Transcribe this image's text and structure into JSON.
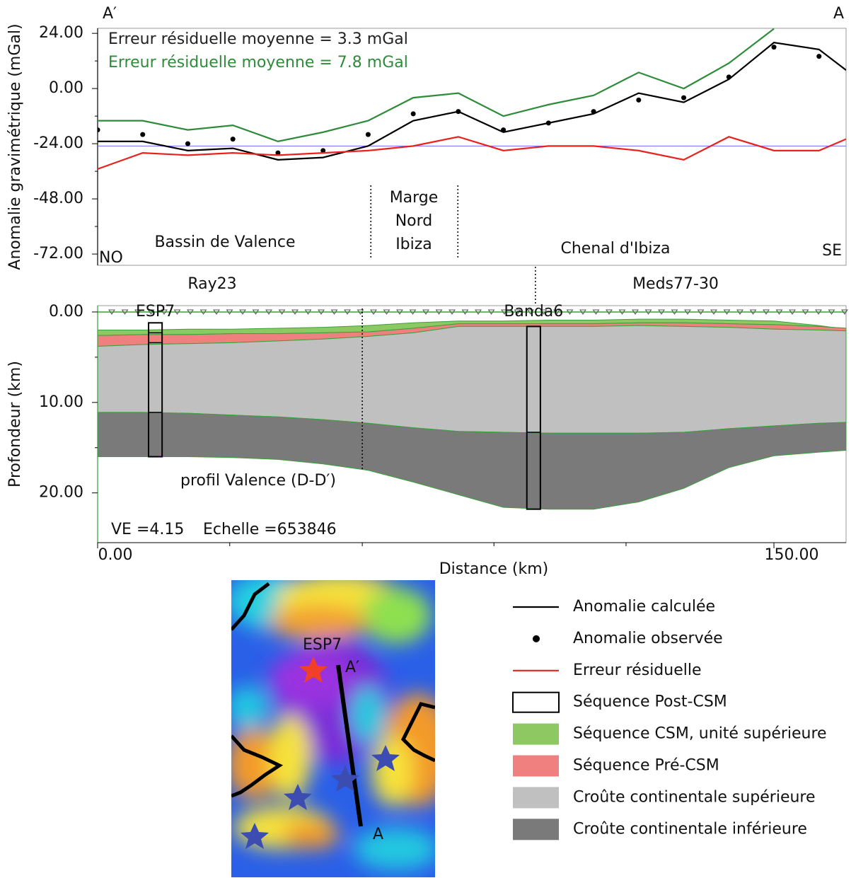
{
  "chart_data": [
    {
      "type": "line",
      "corner_left": "A′",
      "corner_right": "A",
      "error_labels": [
        {
          "text": "Erreur résiduelle moyenne = 3.3 mGal",
          "color": "#222222"
        },
        {
          "text": "Erreur résiduelle moyenne = 7.8 mGal",
          "color": "#2e8b3a"
        }
      ],
      "ylabel": "Anomalie gravimétrique (mGal)",
      "x": [
        0,
        10,
        20,
        30,
        40,
        50,
        60,
        70,
        80,
        90,
        100,
        110,
        120,
        130,
        140,
        150,
        160,
        166
      ],
      "xlim": [
        0,
        166
      ],
      "ylim": [
        -76.9,
        26.2
      ],
      "yticks": [
        {
          "value": 24,
          "label": "24.00"
        },
        {
          "value": 0,
          "label": "0.00"
        },
        {
          "value": -24,
          "label": "-24.00"
        },
        {
          "value": -48,
          "label": "-48.00"
        },
        {
          "value": -72,
          "label": "-72.00"
        }
      ],
      "yminor": [
        12,
        -12,
        -36,
        -60
      ],
      "series": [
        {
          "name": "Anomalie calculée",
          "color": "#000000",
          "style": "line",
          "values": [
            -23,
            -23,
            -27,
            -26,
            -31,
            -30,
            -25,
            -14,
            -10,
            -19,
            -15,
            -11,
            -2,
            -6,
            4,
            20,
            17,
            8
          ]
        },
        {
          "name": "Anomalie observée",
          "color": "#000000",
          "style": "dots",
          "values": [
            -18,
            -20,
            -24,
            -22,
            -28,
            -27,
            -20,
            -11,
            -10,
            -18,
            -15,
            -10,
            -5,
            -4,
            5,
            18,
            14,
            null
          ]
        },
        {
          "name": "Erreur résiduelle",
          "color": "#e8221c",
          "style": "line",
          "values": [
            -35,
            -28,
            -29,
            -28,
            -29,
            -28,
            -27,
            -25,
            -21,
            -27,
            -25,
            -25,
            -27,
            -31,
            -21,
            -27,
            -27,
            -22
          ]
        },
        {
          "color": "#2e8b3a",
          "style": "line",
          "values": [
            -14,
            -14,
            -18,
            -16,
            -23,
            -19,
            -14,
            -4,
            -2,
            -12,
            -7,
            -3,
            7,
            0,
            11,
            26,
            null,
            null
          ]
        }
      ],
      "reference_line": {
        "value": -25,
        "color": "#6b6bff"
      },
      "boundaries": [
        60.6,
        79.9
      ],
      "regions": {
        "left": "Bassin de Valence",
        "middle": [
          "Marge",
          "Nord",
          "Ibiza"
        ],
        "right": "Chenal d'Ibiza"
      },
      "side_left": "NO",
      "side_right": "SE"
    },
    {
      "type": "section",
      "ylabel": "Profondeur (km)",
      "xlabel": "Distance (km)",
      "x": [
        0,
        10,
        20,
        30,
        40,
        50,
        60,
        70,
        80,
        90,
        100,
        110,
        120,
        130,
        140,
        150,
        160,
        166
      ],
      "xlim": [
        0,
        166
      ],
      "ylim": [
        -0.7,
        25.5
      ],
      "xticks": [
        {
          "value": 0,
          "label": "0.00"
        },
        {
          "value": 150,
          "label": "150.00"
        }
      ],
      "xminor": [
        29.3,
        58.7,
        87.9,
        117.2
      ],
      "yticks": [
        {
          "value": 0,
          "label": "0.00"
        },
        {
          "value": 10,
          "label": "10.00"
        },
        {
          "value": 20,
          "label": "20.00"
        }
      ],
      "yminor": [
        5,
        15
      ],
      "layers": [
        {
          "name": "Séquence CSM, unité supérieure",
          "color": "#8dc863",
          "top": [
            2.0,
            2.0,
            1.9,
            1.9,
            1.8,
            1.7,
            1.5,
            1.2,
            1.0,
            1.0,
            0.9,
            0.9,
            0.8,
            0.8,
            0.9,
            1.0,
            1.5,
            1.9
          ],
          "bottom": [
            2.6,
            2.5,
            2.5,
            2.4,
            2.4,
            2.3,
            2.2,
            1.8,
            1.3,
            1.3,
            1.3,
            1.3,
            1.2,
            1.2,
            1.3,
            1.4,
            1.6,
            1.8
          ]
        },
        {
          "name": "Séquence Pré-CSM",
          "color": "#f08080",
          "top": [
            2.6,
            2.5,
            2.5,
            2.4,
            2.4,
            2.3,
            2.2,
            1.8,
            1.3,
            1.3,
            1.3,
            1.3,
            1.2,
            1.2,
            1.3,
            1.4,
            1.6,
            1.8
          ],
          "bottom": [
            3.8,
            3.6,
            3.5,
            3.4,
            3.2,
            3.0,
            2.7,
            2.3,
            1.6,
            1.6,
            1.6,
            1.6,
            1.5,
            1.6,
            1.7,
            1.9,
            2.0,
            2.1
          ]
        },
        {
          "name": "Croûte continentale supérieure",
          "color": "#c0c0c0",
          "top": [
            3.8,
            3.6,
            3.5,
            3.4,
            3.2,
            3.0,
            2.7,
            2.3,
            1.6,
            1.6,
            1.6,
            1.6,
            1.5,
            1.6,
            1.7,
            1.9,
            2.0,
            2.1
          ],
          "bottom": [
            11.1,
            11.1,
            11.2,
            11.4,
            11.6,
            11.9,
            12.3,
            12.8,
            13.2,
            13.3,
            13.4,
            13.4,
            13.4,
            13.3,
            12.9,
            12.6,
            12.3,
            12.2
          ]
        },
        {
          "name": "Croûte continentale inférieure",
          "color": "#7a7a7a",
          "top": [
            11.1,
            11.1,
            11.2,
            11.4,
            11.6,
            11.9,
            12.3,
            12.8,
            13.2,
            13.3,
            13.4,
            13.4,
            13.4,
            13.3,
            12.9,
            12.6,
            12.3,
            12.2
          ],
          "bottom": [
            16.0,
            16.0,
            16.0,
            16.1,
            16.3,
            16.8,
            17.5,
            18.8,
            20.2,
            21.6,
            21.8,
            21.8,
            21.0,
            19.5,
            17.2,
            15.9,
            15.5,
            15.3
          ]
        }
      ],
      "post_csm_label": "Séquence Post-CSM",
      "wells": [
        {
          "name": "ESP7",
          "x": [
            11.3,
            14.3
          ],
          "depth": [
            1.2,
            16.0
          ],
          "divisions": [
            2.3,
            3.4,
            11.1
          ]
        },
        {
          "name": "Banda6",
          "x": [
            95.2,
            98.2
          ],
          "depth": [
            1.6,
            21.8
          ],
          "divisions": [
            13.3
          ]
        }
      ],
      "profiles": {
        "left": "Ray23",
        "right": "Meds77-30",
        "valence": "profil Valence (D-D′)"
      },
      "boundary": 58.7,
      "link": 97.1,
      "notes": {
        "ve": "VE =4.15",
        "scale": "Echelle =653846"
      }
    }
  ],
  "map": {
    "well": "ESP7",
    "start": "A′",
    "end": "A"
  }
}
